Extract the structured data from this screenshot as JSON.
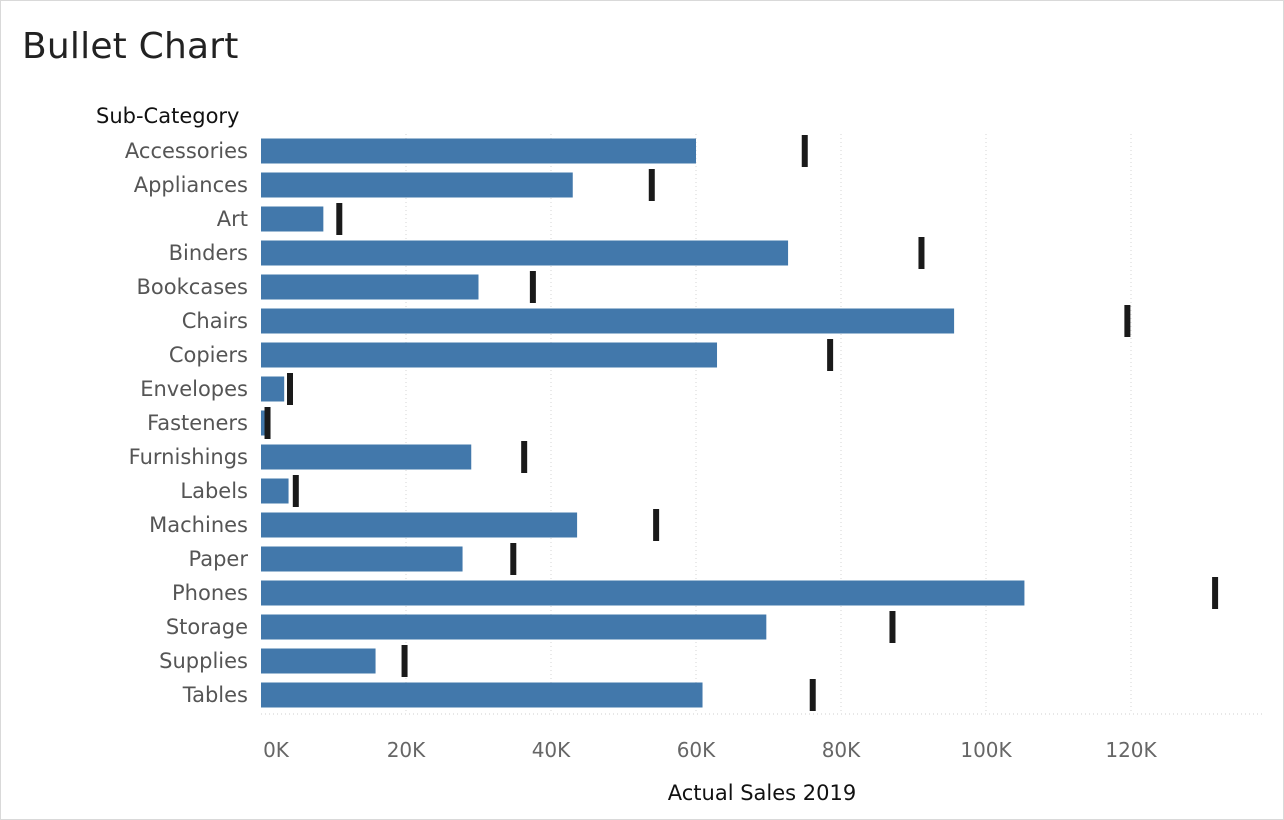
{
  "title": "Bullet Chart",
  "chart_data": {
    "type": "bar",
    "orientation": "horizontal",
    "category_header": "Sub-Category",
    "xlabel": "Actual Sales 2019",
    "x_ticks": [
      "0K",
      "20K",
      "40K",
      "60K",
      "80K",
      "100K",
      "120K"
    ],
    "xlim": [
      0,
      138000
    ],
    "grid": "vertical dotted",
    "categories": [
      "Accessories",
      "Appliances",
      "Art",
      "Binders",
      "Bookcases",
      "Chairs",
      "Copiers",
      "Envelopes",
      "Fasteners",
      "Furnishings",
      "Labels",
      "Machines",
      "Paper",
      "Phones",
      "Storage",
      "Supplies",
      "Tables"
    ],
    "series": [
      {
        "kind": "bar",
        "values": [
          60000,
          43000,
          8600,
          72700,
          30000,
          95600,
          62900,
          3200,
          700,
          29000,
          3800,
          43600,
          27800,
          105300,
          69700,
          15800,
          60900
        ]
      },
      {
        "kind": "target-marker",
        "values": [
          75000,
          53900,
          10800,
          91100,
          37500,
          119500,
          78500,
          4000,
          900,
          36300,
          4800,
          54500,
          34800,
          131600,
          87100,
          19800,
          76100
        ]
      }
    ],
    "colors": {
      "bar": "#4278AB",
      "marker": "#1a1a1a",
      "grid": "#d6d6d6"
    }
  }
}
